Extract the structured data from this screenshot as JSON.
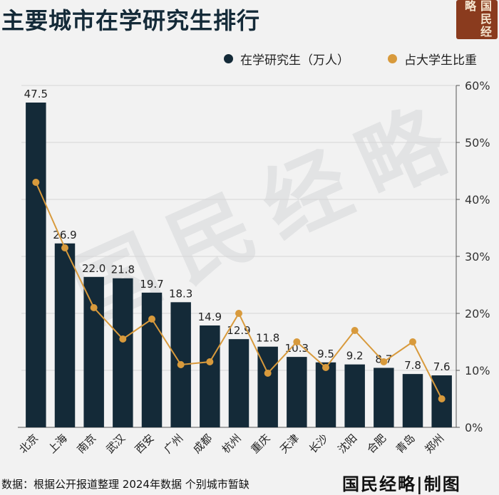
{
  "header": {
    "title": "主要城市在学研究生排行",
    "brand_seal": "国民经略"
  },
  "legend": {
    "series1": "在学研究生（万人）",
    "series2": "占大学生比重"
  },
  "colors": {
    "bar": "#142a38",
    "line": "#d89a3c",
    "background": "#f2f2f2",
    "seal": "#8a3b1e"
  },
  "watermark": "国民经略",
  "footer": {
    "source": "数据：根据公开报道整理 2024年数据 个别城市暂缺",
    "brand": "国民经略|制图"
  },
  "chart_data": {
    "type": "bar",
    "categories": [
      "北京",
      "上海",
      "南京",
      "武汉",
      "西安",
      "广州",
      "成都",
      "杭州",
      "重庆",
      "天津",
      "长沙",
      "沈阳",
      "合肥",
      "青岛",
      "郑州"
    ],
    "series": [
      {
        "name": "在学研究生（万人）",
        "type": "bar",
        "axis": "left",
        "values": [
          47.5,
          26.9,
          22.0,
          21.8,
          19.7,
          18.3,
          14.9,
          12.9,
          11.8,
          10.3,
          9.5,
          9.2,
          8.7,
          7.8,
          7.6
        ],
        "labels": [
          "47.5",
          "26.9",
          "22.0",
          "21.8",
          "19.7",
          "18.3",
          "14.9",
          "12.9",
          "11.8",
          "10.3",
          "9.5",
          "9.2",
          "8.7",
          "7.8",
          "7.6"
        ]
      },
      {
        "name": "占大学生比重",
        "type": "line",
        "axis": "right",
        "values": [
          43,
          31.5,
          21,
          15.5,
          19,
          11,
          11.5,
          20,
          9.5,
          15,
          10.5,
          17,
          11.5,
          15,
          5
        ]
      }
    ],
    "left_ylim": [
      0,
      50
    ],
    "right_ylim": [
      0,
      60
    ],
    "right_ticks": [
      "0%",
      "10%",
      "20%",
      "30%",
      "40%",
      "50%",
      "60%"
    ],
    "legend_position": "top-right"
  }
}
